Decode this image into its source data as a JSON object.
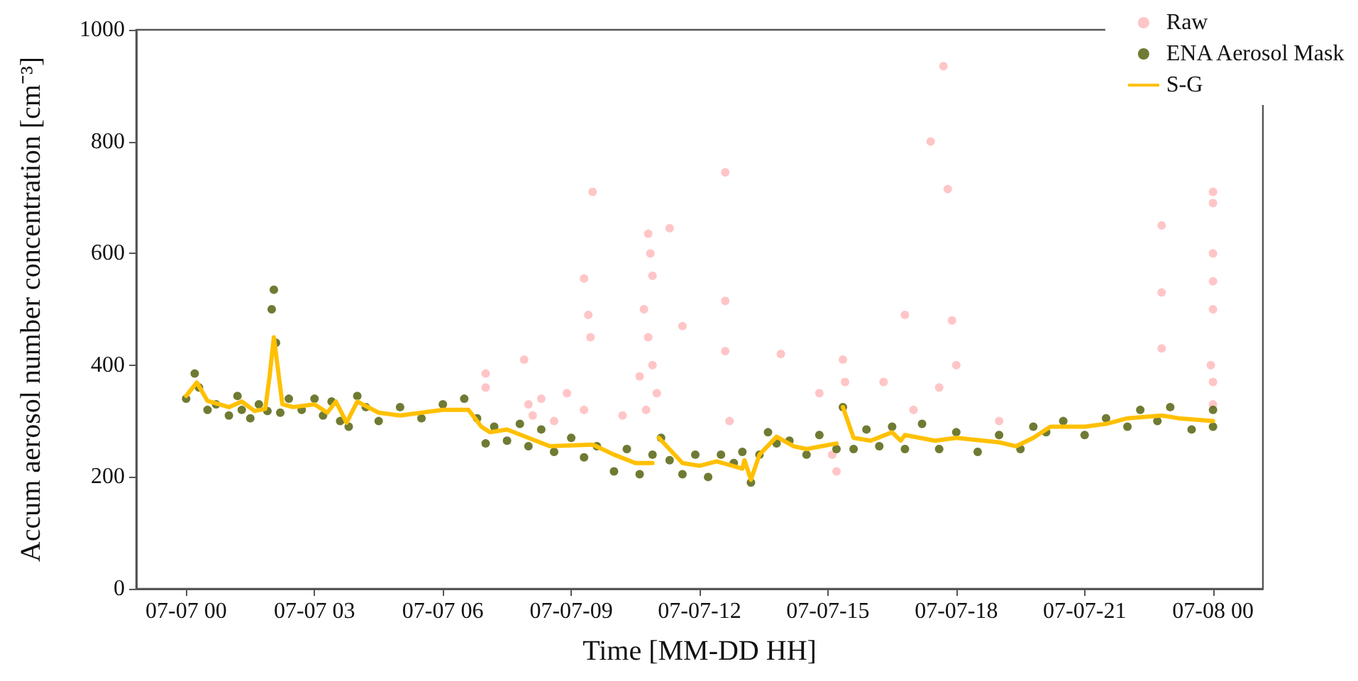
{
  "chart_data": {
    "type": "scatter",
    "xlabel": "Time [MM-DD HH]",
    "ylabel": "Accum aerosol number concentration [cm⁻³]",
    "xlim": [
      "--07-06T22:50",
      "--07-08T01:10"
    ],
    "ylim": [
      0,
      1000
    ],
    "xticks": [
      {
        "value": "--07-07T00:00",
        "label": "07-07 00"
      },
      {
        "value": "--07-07T03:00",
        "label": "07-07 03"
      },
      {
        "value": "--07-07T06:00",
        "label": "07-07 06"
      },
      {
        "value": "--07-07T09:00",
        "label": "07-07-09"
      },
      {
        "value": "--07-07T12:00",
        "label": "07-07-12"
      },
      {
        "value": "--07-07T15:00",
        "label": "07-07-15"
      },
      {
        "value": "--07-07T18:00",
        "label": "07-07-18"
      },
      {
        "value": "--07-07T21:00",
        "label": "07-07-21"
      },
      {
        "value": "--07-08T00:00",
        "label": "07-08 00"
      }
    ],
    "yticks": [
      0,
      200,
      400,
      600,
      800,
      1000
    ],
    "grid": false,
    "legend": "top right",
    "marker": "circle",
    "series": [
      {
        "name": "Raw",
        "color": "#ffb6b9",
        "x": [
          "--07-07T07:00",
          "--07-07T07:00",
          "--07-07T07:54",
          "--07-07T08:00",
          "--07-07T08:06",
          "--07-07T08:18",
          "--07-07T08:36",
          "--07-07T08:54",
          "--07-07T09:18",
          "--07-07T09:18",
          "--07-07T09:24",
          "--07-07T09:27",
          "--07-07T09:30",
          "--07-07T10:12",
          "--07-07T10:36",
          "--07-07T10:42",
          "--07-07T10:45",
          "--07-07T10:48",
          "--07-07T10:48",
          "--07-07T10:51",
          "--07-07T10:54",
          "--07-07T10:54",
          "--07-07T11:00",
          "--07-07T11:18",
          "--07-07T11:36",
          "--07-07T12:36",
          "--07-07T12:36",
          "--07-07T12:36",
          "--07-07T12:42",
          "--07-07T13:54",
          "--07-07T14:48",
          "--07-07T15:06",
          "--07-07T15:12",
          "--07-07T15:21",
          "--07-07T15:24",
          "--07-07T16:18",
          "--07-07T16:48",
          "--07-07T17:00",
          "--07-07T17:24",
          "--07-07T17:36",
          "--07-07T17:42",
          "--07-07T17:48",
          "--07-07T17:54",
          "--07-07T18:00",
          "--07-07T19:00",
          "--07-07T22:48",
          "--07-07T22:48",
          "--07-07T22:48",
          "--07-07T23:57",
          "--07-08T00:00",
          "--07-08T00:00",
          "--07-08T00:00",
          "--07-08T00:00",
          "--07-08T00:00",
          "--07-08T00:00",
          "--07-08T00:00"
        ],
        "values": [
          385,
          360,
          410,
          330,
          310,
          340,
          300,
          350,
          555,
          320,
          490,
          450,
          710,
          310,
          380,
          500,
          320,
          635,
          450,
          600,
          560,
          400,
          350,
          645,
          470,
          745,
          515,
          425,
          300,
          420,
          350,
          240,
          210,
          410,
          370,
          370,
          490,
          320,
          800,
          360,
          935,
          715,
          480,
          400,
          300,
          650,
          530,
          430,
          400,
          710,
          690,
          600,
          550,
          500,
          370,
          330
        ]
      },
      {
        "name": "ENA Aerosol Mask",
        "color": "#4b5a00",
        "x": [
          "--07-07T00:00",
          "--07-07T00:12",
          "--07-07T00:18",
          "--07-07T00:30",
          "--07-07T00:42",
          "--07-07T01:00",
          "--07-07T01:12",
          "--07-07T01:18",
          "--07-07T01:30",
          "--07-07T01:42",
          "--07-07T01:54",
          "--07-07T02:00",
          "--07-07T02:03",
          "--07-07T02:06",
          "--07-07T02:12",
          "--07-07T02:24",
          "--07-07T02:42",
          "--07-07T03:00",
          "--07-07T03:12",
          "--07-07T03:24",
          "--07-07T03:36",
          "--07-07T03:48",
          "--07-07T04:00",
          "--07-07T04:12",
          "--07-07T04:30",
          "--07-07T05:00",
          "--07-07T05:30",
          "--07-07T06:00",
          "--07-07T06:30",
          "--07-07T06:48",
          "--07-07T07:00",
          "--07-07T07:12",
          "--07-07T07:30",
          "--07-07T07:48",
          "--07-07T08:00",
          "--07-07T08:18",
          "--07-07T08:36",
          "--07-07T09:00",
          "--07-07T09:18",
          "--07-07T09:36",
          "--07-07T10:00",
          "--07-07T10:18",
          "--07-07T10:36",
          "--07-07T10:54",
          "--07-07T11:06",
          "--07-07T11:18",
          "--07-07T11:36",
          "--07-07T11:54",
          "--07-07T12:12",
          "--07-07T12:30",
          "--07-07T12:48",
          "--07-07T13:00",
          "--07-07T13:12",
          "--07-07T13:24",
          "--07-07T13:36",
          "--07-07T13:48",
          "--07-07T14:06",
          "--07-07T14:30",
          "--07-07T14:48",
          "--07-07T15:12",
          "--07-07T15:21",
          "--07-07T15:36",
          "--07-07T15:54",
          "--07-07T16:12",
          "--07-07T16:30",
          "--07-07T16:48",
          "--07-07T17:12",
          "--07-07T17:36",
          "--07-07T18:00",
          "--07-07T18:30",
          "--07-07T19:00",
          "--07-07T19:30",
          "--07-07T19:48",
          "--07-07T20:06",
          "--07-07T20:30",
          "--07-07T21:00",
          "--07-07T21:30",
          "--07-07T22:00",
          "--07-07T22:18",
          "--07-07T22:42",
          "--07-07T23:00",
          "--07-07T23:30",
          "--07-08T00:00",
          "--07-08T00:00"
        ],
        "values": [
          340,
          385,
          360,
          320,
          330,
          310,
          345,
          320,
          305,
          330,
          318,
          500,
          535,
          440,
          315,
          340,
          320,
          340,
          310,
          335,
          300,
          290,
          345,
          325,
          300,
          325,
          305,
          330,
          340,
          305,
          260,
          290,
          265,
          295,
          255,
          285,
          245,
          270,
          235,
          255,
          210,
          250,
          205,
          240,
          270,
          230,
          205,
          240,
          200,
          240,
          225,
          245,
          190,
          240,
          280,
          260,
          265,
          240,
          275,
          250,
          325,
          250,
          285,
          255,
          290,
          250,
          295,
          250,
          280,
          245,
          275,
          250,
          290,
          280,
          300,
          275,
          305,
          290,
          320,
          300,
          325,
          285,
          320,
          290
        ]
      },
      {
        "name": "S-G",
        "type": "line",
        "marker": "none",
        "color": "#ffc000",
        "x": [
          "--07-07T00:00",
          "--07-07T00:15",
          "--07-07T00:30",
          "--07-07T01:00",
          "--07-07T01:18",
          "--07-07T01:36",
          "--07-07T01:51",
          "--07-07T01:57",
          "--07-07T02:03",
          "--07-07T02:15",
          "--07-07T02:30",
          "--07-07T03:00",
          "--07-07T03:18",
          "--07-07T03:30",
          "--07-07T03:45",
          "--07-07T04:00",
          "--07-07T04:30",
          "--07-07T05:00",
          "--07-07T06:00",
          "--07-07T06:36",
          "--07-07T06:54",
          "--07-07T07:06",
          "--07-07T07:30",
          "--07-07T08:00",
          "--07-07T08:30",
          "--07-07T09:30",
          "--07-07T10:00",
          "--07-07T10:30",
          "--07-07T10:54",
          "--07-07T10:57",
          "--07-07T11:03",
          "--07-07T11:36",
          "--07-07T12:00",
          "--07-07T12:24",
          "--07-07T13:00",
          "--07-07T13:03",
          "--07-07T13:12",
          "--07-07T13:24",
          "--07-07T13:48",
          "--07-07T14:12",
          "--07-07T14:30",
          "--07-07T15:12",
          "--07-07T15:18",
          "--07-07T15:21",
          "--07-07T15:36",
          "--07-07T16:00",
          "--07-07T16:30",
          "--07-07T16:42",
          "--07-07T16:48",
          "--07-07T17:30",
          "--07-07T18:00",
          "--07-07T19:00",
          "--07-07T19:24",
          "--07-07T19:48",
          "--07-07T20:12",
          "--07-07T21:00",
          "--07-07T21:30",
          "--07-07T22:00",
          "--07-07T22:48",
          "--07-07T23:12",
          "--07-08T00:00"
        ],
        "values": [
          345,
          369,
          336,
          325,
          335,
          318,
          322,
          380,
          450,
          330,
          325,
          330,
          315,
          335,
          297,
          335,
          315,
          310,
          320,
          320,
          290,
          280,
          285,
          270,
          255,
          258,
          240,
          225,
          225,
          null,
          270,
          225,
          220,
          228,
          215,
          230,
          195,
          240,
          272,
          255,
          250,
          260,
          null,
          325,
          270,
          265,
          280,
          265,
          275,
          265,
          270,
          262,
          255,
          270,
          290,
          290,
          295,
          305,
          310,
          305,
          300
        ]
      }
    ]
  }
}
